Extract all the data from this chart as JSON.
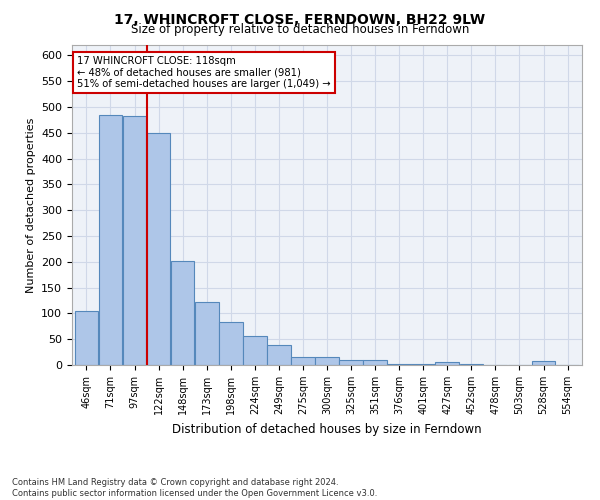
{
  "title": "17, WHINCROFT CLOSE, FERNDOWN, BH22 9LW",
  "subtitle": "Size of property relative to detached houses in Ferndown",
  "xlabel": "Distribution of detached houses by size in Ferndown",
  "ylabel": "Number of detached properties",
  "footer_line1": "Contains HM Land Registry data © Crown copyright and database right 2024.",
  "footer_line2": "Contains public sector information licensed under the Open Government Licence v3.0.",
  "bin_labels": [
    "46sqm",
    "71sqm",
    "97sqm",
    "122sqm",
    "148sqm",
    "173sqm",
    "198sqm",
    "224sqm",
    "249sqm",
    "275sqm",
    "300sqm",
    "325sqm",
    "351sqm",
    "376sqm",
    "401sqm",
    "427sqm",
    "452sqm",
    "478sqm",
    "503sqm",
    "528sqm",
    "554sqm"
  ],
  "bar_values": [
    105,
    485,
    483,
    450,
    202,
    123,
    83,
    56,
    38,
    15,
    15,
    10,
    10,
    1,
    1,
    5,
    1,
    0,
    0,
    7,
    0
  ],
  "bar_color": "#aec6e8",
  "bar_edge_color": "#5588bb",
  "red_line_index": 3,
  "annotation_text_line1": "17 WHINCROFT CLOSE: 118sqm",
  "annotation_text_line2": "← 48% of detached houses are smaller (981)",
  "annotation_text_line3": "51% of semi-detached houses are larger (1,049) →",
  "annotation_box_color": "#ffffff",
  "annotation_box_edge": "#cc0000",
  "red_line_color": "#cc0000",
  "grid_color": "#d0d8e8",
  "background_color": "#eef2f8",
  "ylim": [
    0,
    620
  ],
  "yticks": [
    0,
    50,
    100,
    150,
    200,
    250,
    300,
    350,
    400,
    450,
    500,
    550,
    600
  ]
}
